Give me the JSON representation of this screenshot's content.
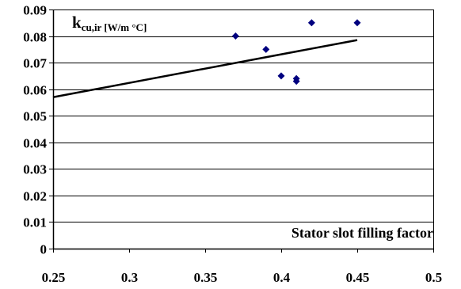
{
  "chart_data": {
    "type": "scatter",
    "title": "",
    "xlabel": "Stator slot filling factor",
    "ylabel": "",
    "ylabel_main": "k",
    "ylabel_sub": "cu,ir [W/m °C]",
    "xlim": [
      0.25,
      0.5
    ],
    "ylim": [
      0,
      0.09
    ],
    "x_ticks": [
      0.25,
      0.3,
      0.35,
      0.4,
      0.45,
      0.5
    ],
    "x_tick_labels": [
      "0.25",
      "0.3",
      "0.35",
      "0.4",
      "0.45",
      "0.5"
    ],
    "y_ticks": [
      0,
      0.01,
      0.02,
      0.03,
      0.04,
      0.05,
      0.06,
      0.07,
      0.08,
      0.09
    ],
    "y_tick_labels": [
      "0",
      "0.01",
      "0.02",
      "0.03",
      "0.04",
      "0.05",
      "0.06",
      "0.07",
      "0.08",
      "0.09"
    ],
    "grid": {
      "horizontal": true,
      "vertical": false
    },
    "points": [
      {
        "x": 0.37,
        "y": 0.08
      },
      {
        "x": 0.39,
        "y": 0.075
      },
      {
        "x": 0.4,
        "y": 0.065
      },
      {
        "x": 0.41,
        "y": 0.064
      },
      {
        "x": 0.41,
        "y": 0.063
      },
      {
        "x": 0.42,
        "y": 0.085
      },
      {
        "x": 0.45,
        "y": 0.085
      }
    ],
    "trendline": {
      "x": [
        0.25,
        0.45
      ],
      "y": [
        0.057,
        0.0785
      ]
    },
    "colors": {
      "points": "#00007f",
      "trendline": "#000000",
      "grid": "#000000",
      "axis": "#000000"
    }
  }
}
